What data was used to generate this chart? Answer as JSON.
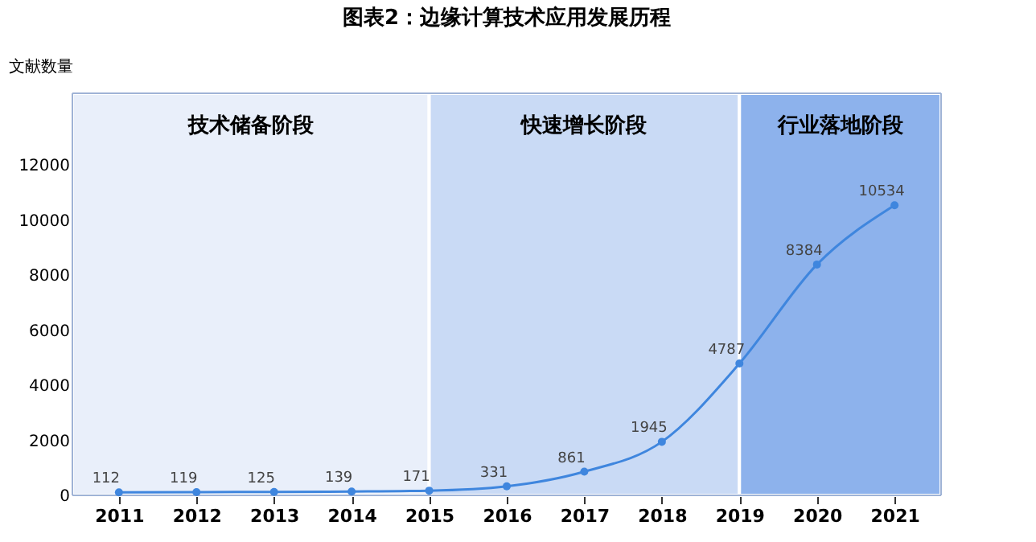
{
  "chart_data": {
    "type": "line",
    "title": "图表2：边缘计算技术应用发展历程",
    "ylabel": "文献数量",
    "x": [
      2011,
      2012,
      2013,
      2014,
      2015,
      2016,
      2017,
      2018,
      2019,
      2020,
      2021
    ],
    "series": [
      {
        "color": "#3f86de",
        "values": [
          112,
          119,
          125,
          139,
          171,
          331,
          861,
          1945,
          4787,
          8384,
          10534
        ]
      }
    ],
    "xlim": [
      2010.4,
      2021.6
    ],
    "xticks": [
      2011,
      2012,
      2013,
      2014,
      2015,
      2016,
      2017,
      2018,
      2019,
      2020,
      2021
    ],
    "ylim": [
      0,
      14600
    ],
    "yticks": [
      0,
      2000,
      4000,
      6000,
      8000,
      10000,
      12000
    ],
    "bands": [
      {
        "axis": "x",
        "from": 2010.4,
        "to": 2015,
        "label": "技术储备阶段",
        "color": "#e9effa"
      },
      {
        "axis": "x",
        "from": 2015,
        "to": 2019,
        "label": "快速增长阶段",
        "color": "#c9daf5"
      },
      {
        "axis": "x",
        "from": 2019,
        "to": 2021.6,
        "label": "行业落地阶段",
        "color": "#8db2ec"
      }
    ],
    "data_labels": true,
    "marker": "circle",
    "line_style": "solid"
  }
}
